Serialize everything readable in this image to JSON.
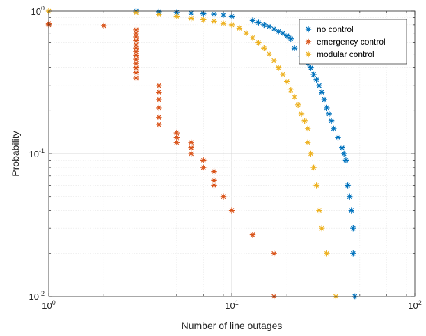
{
  "chart_data": {
    "type": "scatter",
    "xlabel": "Number of line outages",
    "ylabel": "Probability",
    "xscale": "log",
    "yscale": "log",
    "xlim": [
      1,
      100
    ],
    "ylim": [
      0.01,
      1
    ],
    "grid": true,
    "minor_grid": true,
    "legend_position": "top-right",
    "x_ticks": [
      {
        "base": "10",
        "exp": "0"
      },
      {
        "base": "10",
        "exp": "1"
      },
      {
        "base": "10",
        "exp": "2"
      }
    ],
    "y_ticks": [
      {
        "base": "10",
        "exp": "-2"
      },
      {
        "base": "10",
        "exp": "-1"
      },
      {
        "base": "10",
        "exp": "0"
      }
    ],
    "series": [
      {
        "name": "no control",
        "color": "#0072BD",
        "points": [
          [
            3,
            1.0
          ],
          [
            4,
            0.99
          ],
          [
            5,
            0.98
          ],
          [
            6,
            0.97
          ],
          [
            7,
            0.96
          ],
          [
            8,
            0.955
          ],
          [
            9,
            0.94
          ],
          [
            10,
            0.92
          ],
          [
            13,
            0.86
          ],
          [
            14,
            0.83
          ],
          [
            15,
            0.8
          ],
          [
            16,
            0.78
          ],
          [
            17,
            0.75
          ],
          [
            18,
            0.72
          ],
          [
            19,
            0.7
          ],
          [
            20,
            0.67
          ],
          [
            21,
            0.64
          ],
          [
            22,
            0.55
          ],
          [
            24,
            0.48
          ],
          [
            25,
            0.45
          ],
          [
            26,
            0.43
          ],
          [
            27,
            0.4
          ],
          [
            28,
            0.36
          ],
          [
            29,
            0.33
          ],
          [
            30,
            0.3
          ],
          [
            31,
            0.27
          ],
          [
            32,
            0.24
          ],
          [
            33,
            0.21
          ],
          [
            34,
            0.19
          ],
          [
            35,
            0.17
          ],
          [
            36,
            0.15
          ],
          [
            38,
            0.13
          ],
          [
            40,
            0.11
          ],
          [
            41,
            0.1
          ],
          [
            42,
            0.09
          ],
          [
            43,
            0.06
          ],
          [
            44,
            0.05
          ],
          [
            45,
            0.04
          ],
          [
            46,
            0.03
          ],
          [
            46,
            0.02
          ],
          [
            47,
            0.01
          ]
        ]
      },
      {
        "name": "emergency control",
        "color": "#D95319",
        "points": [
          [
            1,
            0.82
          ],
          [
            1,
            0.8
          ],
          [
            2,
            0.79
          ],
          [
            3,
            0.74
          ],
          [
            3,
            0.7
          ],
          [
            3,
            0.66
          ],
          [
            3,
            0.62
          ],
          [
            3,
            0.58
          ],
          [
            3,
            0.55
          ],
          [
            3,
            0.52
          ],
          [
            3,
            0.49
          ],
          [
            3,
            0.46
          ],
          [
            3,
            0.43
          ],
          [
            3,
            0.4
          ],
          [
            3,
            0.37
          ],
          [
            3,
            0.34
          ],
          [
            4,
            0.3
          ],
          [
            4,
            0.27
          ],
          [
            4,
            0.24
          ],
          [
            4,
            0.21
          ],
          [
            4,
            0.18
          ],
          [
            4,
            0.16
          ],
          [
            5,
            0.14
          ],
          [
            5,
            0.13
          ],
          [
            5,
            0.12
          ],
          [
            6,
            0.12
          ],
          [
            6,
            0.11
          ],
          [
            6,
            0.1
          ],
          [
            7,
            0.09
          ],
          [
            7,
            0.08
          ],
          [
            8,
            0.075
          ],
          [
            8,
            0.065
          ],
          [
            8,
            0.06
          ],
          [
            9,
            0.05
          ],
          [
            10,
            0.04
          ],
          [
            13,
            0.027
          ],
          [
            17,
            0.02
          ],
          [
            17,
            0.01
          ]
        ]
      },
      {
        "name": "modular control",
        "color": "#EDB120",
        "points": [
          [
            1,
            1.0
          ],
          [
            3,
            0.98
          ],
          [
            4,
            0.95
          ],
          [
            5,
            0.92
          ],
          [
            6,
            0.89
          ],
          [
            7,
            0.87
          ],
          [
            8,
            0.85
          ],
          [
            9,
            0.82
          ],
          [
            10,
            0.8
          ],
          [
            11,
            0.76
          ],
          [
            12,
            0.7
          ],
          [
            13,
            0.65
          ],
          [
            14,
            0.6
          ],
          [
            15,
            0.55
          ],
          [
            16,
            0.5
          ],
          [
            17,
            0.45
          ],
          [
            18,
            0.4
          ],
          [
            19,
            0.36
          ],
          [
            20,
            0.32
          ],
          [
            21,
            0.28
          ],
          [
            22,
            0.25
          ],
          [
            23,
            0.22
          ],
          [
            24,
            0.19
          ],
          [
            25,
            0.17
          ],
          [
            26,
            0.15
          ],
          [
            26,
            0.12
          ],
          [
            27,
            0.1
          ],
          [
            28,
            0.08
          ],
          [
            29,
            0.06
          ],
          [
            30,
            0.04
          ],
          [
            31,
            0.03
          ],
          [
            33,
            0.02
          ],
          [
            37,
            0.01
          ]
        ]
      }
    ]
  }
}
